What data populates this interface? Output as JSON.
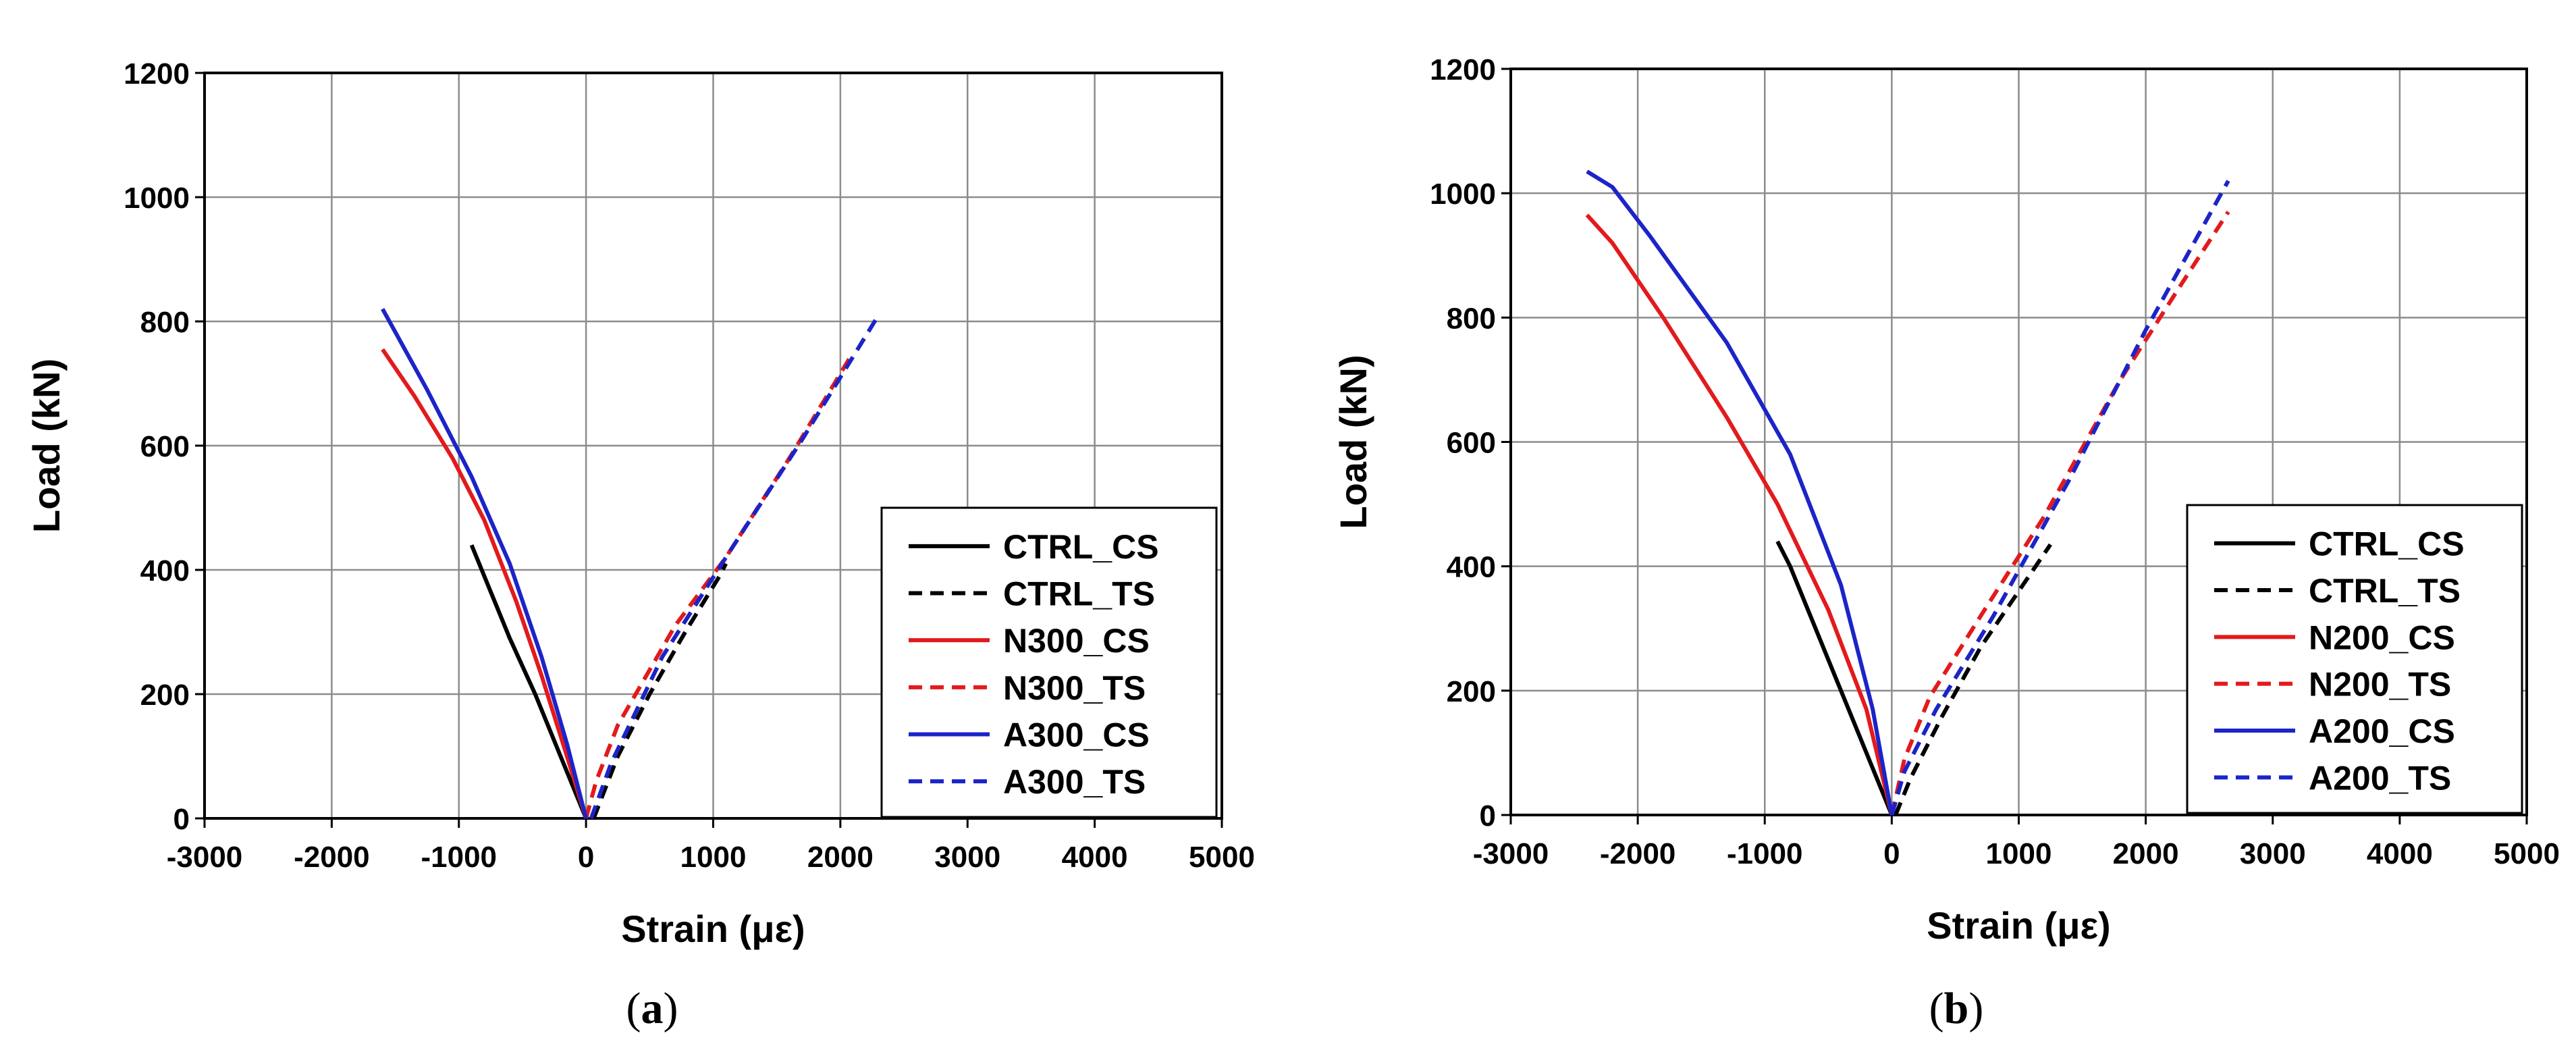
{
  "figure_captions": [
    "(a)",
    "(b)"
  ],
  "chart_data": [
    {
      "type": "line",
      "panel": "a",
      "caption_letter": "a",
      "xlabel": "Strain (με)",
      "ylabel": "Load (kN)",
      "xlim": [
        -3000,
        5000
      ],
      "ylim": [
        0,
        1200
      ],
      "xticks": [
        -3000,
        -2000,
        -1000,
        0,
        1000,
        2000,
        3000,
        4000,
        5000
      ],
      "yticks": [
        0,
        200,
        400,
        600,
        800,
        1000,
        1200
      ],
      "grid": true,
      "legend_position": "bottom-right",
      "series": [
        {
          "name": "CTRL_CS",
          "color": "#000000",
          "style": "solid",
          "points": [
            [
              0,
              0
            ],
            [
              -200,
              100
            ],
            [
              -400,
              200
            ],
            [
              -600,
              290
            ],
            [
              -800,
              390
            ],
            [
              -900,
              440
            ]
          ]
        },
        {
          "name": "CTRL_TS",
          "color": "#000000",
          "style": "dashed",
          "points": [
            [
              60,
              0
            ],
            [
              250,
              100
            ],
            [
              500,
              200
            ],
            [
              780,
              300
            ],
            [
              1050,
              390
            ],
            [
              1100,
              410
            ]
          ]
        },
        {
          "name": "N300_CS",
          "color": "#e31a1c",
          "style": "solid",
          "points": [
            [
              0,
              0
            ],
            [
              -150,
              100
            ],
            [
              -350,
              230
            ],
            [
              -550,
              350
            ],
            [
              -800,
              480
            ],
            [
              -1050,
              580
            ],
            [
              -1350,
              680
            ],
            [
              -1600,
              755
            ]
          ]
        },
        {
          "name": "N300_TS",
          "color": "#e31a1c",
          "style": "dashed",
          "points": [
            [
              0,
              0
            ],
            [
              80,
              60
            ],
            [
              250,
              150
            ],
            [
              700,
              310
            ],
            [
              1100,
              420
            ],
            [
              1600,
              580
            ],
            [
              2100,
              750
            ]
          ]
        },
        {
          "name": "A300_CS",
          "color": "#1c24c8",
          "style": "solid",
          "points": [
            [
              0,
              0
            ],
            [
              -150,
              120
            ],
            [
              -350,
              260
            ],
            [
              -600,
              410
            ],
            [
              -900,
              550
            ],
            [
              -1250,
              690
            ],
            [
              -1600,
              820
            ]
          ]
        },
        {
          "name": "A300_TS",
          "color": "#1c24c8",
          "style": "dashed",
          "points": [
            [
              40,
              0
            ],
            [
              200,
              90
            ],
            [
              600,
              260
            ],
            [
              1100,
              420
            ],
            [
              1700,
              610
            ],
            [
              2300,
              810
            ]
          ]
        }
      ]
    },
    {
      "type": "line",
      "panel": "b",
      "caption_letter": "b",
      "xlabel": "Strain (με)",
      "ylabel": "Load (kN)",
      "xlim": [
        -3000,
        5000
      ],
      "ylim": [
        0,
        1200
      ],
      "xticks": [
        -3000,
        -2000,
        -1000,
        0,
        1000,
        2000,
        3000,
        4000,
        5000
      ],
      "yticks": [
        0,
        200,
        400,
        600,
        800,
        1000,
        1200
      ],
      "grid": true,
      "legend_position": "bottom-right",
      "series": [
        {
          "name": "CTRL_CS",
          "color": "#000000",
          "style": "solid",
          "points": [
            [
              0,
              0
            ],
            [
              -200,
              100
            ],
            [
              -400,
              200
            ],
            [
              -600,
              300
            ],
            [
              -800,
              400
            ],
            [
              -900,
              440
            ]
          ]
        },
        {
          "name": "CTRL_TS",
          "color": "#000000",
          "style": "dashed",
          "points": [
            [
              30,
              0
            ],
            [
              150,
              60
            ],
            [
              400,
              160
            ],
            [
              700,
              270
            ],
            [
              1000,
              360
            ],
            [
              1250,
              435
            ]
          ]
        },
        {
          "name": "N200_CS",
          "color": "#e31a1c",
          "style": "solid",
          "points": [
            [
              0,
              0
            ],
            [
              -200,
              170
            ],
            [
              -500,
              330
            ],
            [
              -900,
              500
            ],
            [
              -1300,
              640
            ],
            [
              -1800,
              800
            ],
            [
              -2200,
              920
            ],
            [
              -2400,
              965
            ]
          ]
        },
        {
          "name": "N200_TS",
          "color": "#e31a1c",
          "style": "dashed",
          "points": [
            [
              0,
              0
            ],
            [
              100,
              90
            ],
            [
              300,
              190
            ],
            [
              700,
              320
            ],
            [
              1200,
              480
            ],
            [
              1800,
              700
            ],
            [
              2300,
              860
            ],
            [
              2650,
              970
            ]
          ]
        },
        {
          "name": "A200_CS",
          "color": "#1c24c8",
          "style": "solid",
          "points": [
            [
              0,
              0
            ],
            [
              -150,
              170
            ],
            [
              -400,
              370
            ],
            [
              -800,
              580
            ],
            [
              -1300,
              760
            ],
            [
              -1900,
              930
            ],
            [
              -2200,
              1010
            ],
            [
              -2400,
              1035
            ]
          ]
        },
        {
          "name": "A200_TS",
          "color": "#1c24c8",
          "style": "dashed",
          "points": [
            [
              0,
              0
            ],
            [
              100,
              70
            ],
            [
              350,
              170
            ],
            [
              800,
              320
            ],
            [
              1400,
              540
            ],
            [
              2000,
              780
            ],
            [
              2650,
              1020
            ]
          ]
        }
      ]
    }
  ]
}
